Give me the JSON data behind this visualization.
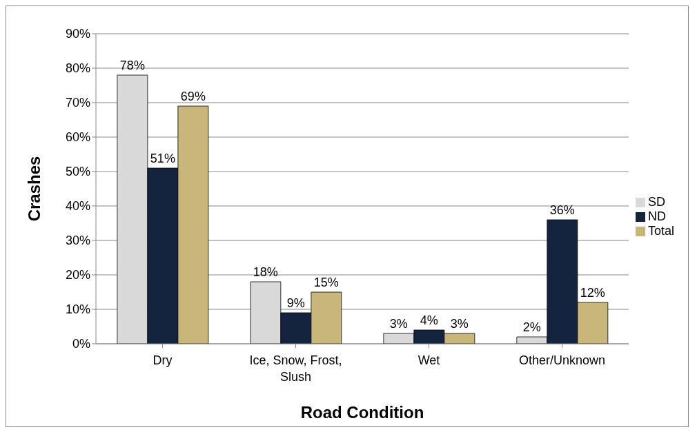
{
  "chart_data": {
    "type": "bar",
    "xlabel": "Road Condition",
    "ylabel": "Crashes",
    "categories": [
      "Dry",
      "Ice, Snow, Frost, Slush",
      "Wet",
      "Other/Unknown"
    ],
    "series": [
      {
        "name": "SD",
        "color": "#d9d9d9",
        "values": [
          78,
          18,
          3,
          2
        ],
        "value_labels": [
          "78%",
          "18%",
          "3%",
          "2%"
        ]
      },
      {
        "name": "ND",
        "color": "#14243f",
        "values": [
          51,
          9,
          4,
          36
        ],
        "value_labels": [
          "51%",
          "9%",
          "4%",
          "36%"
        ]
      },
      {
        "name": "Total",
        "color": "#c9b67a",
        "values": [
          69,
          15,
          3,
          12
        ],
        "value_labels": [
          "69%",
          "15%",
          "3%",
          "12%"
        ]
      }
    ],
    "ylim": [
      0,
      90
    ],
    "yticks": [
      {
        "value": 0,
        "label": "0%"
      },
      {
        "value": 10,
        "label": "10%"
      },
      {
        "value": 20,
        "label": "20%"
      },
      {
        "value": 30,
        "label": "30%"
      },
      {
        "value": 40,
        "label": "40%"
      },
      {
        "value": 50,
        "label": "50%"
      },
      {
        "value": 60,
        "label": "60%"
      },
      {
        "value": 70,
        "label": "70%"
      },
      {
        "value": 80,
        "label": "80%"
      },
      {
        "value": 90,
        "label": "90%"
      }
    ],
    "grid": "y",
    "legend": "right"
  }
}
